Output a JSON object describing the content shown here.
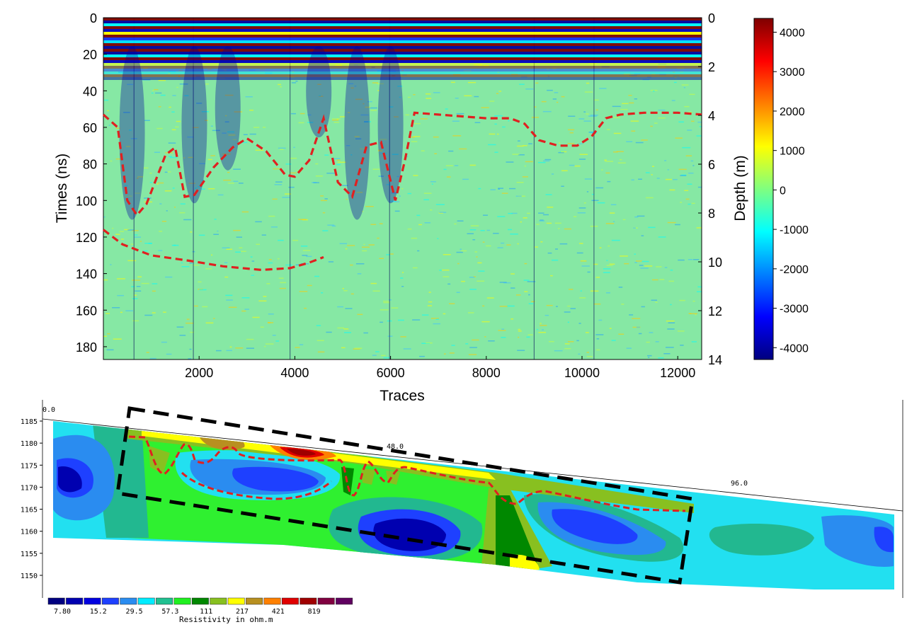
{
  "chart_data": [
    {
      "type": "heatmap",
      "xlabel": "Traces",
      "ylabel_left": "Times (ns)",
      "ylabel_right": "Depth (m)",
      "xticks": [
        2000,
        4000,
        6000,
        8000,
        10000,
        12000
      ],
      "xlim": [
        0,
        12500
      ],
      "yticks_left": [
        0,
        20,
        40,
        60,
        80,
        100,
        120,
        140,
        160,
        180
      ],
      "ylim_left": [
        0,
        187
      ],
      "yticks_right": [
        0,
        2,
        4,
        6,
        8,
        10,
        12,
        14
      ],
      "ylim_right": [
        0,
        14
      ],
      "colorbar_ticks": [
        4000,
        3000,
        2000,
        1000,
        0,
        -1000,
        -2000,
        -3000,
        -4000
      ],
      "colorbar_range": [
        -4300,
        4350
      ],
      "colormap": "jet",
      "interpreted_boundaries": {
        "color": "#e02020",
        "style": "dashed",
        "lines": [
          {
            "x": [
              0,
              300,
              500,
              700,
              900,
              1300,
              1500,
              1700,
              1900,
              2300,
              2700,
              3000,
              3400,
              3800,
              4000,
              4300,
              4600,
              4900,
              5200,
              5500,
              5800,
              6100,
              6300,
              6500,
              7000,
              8000,
              8500,
              8800,
              9100,
              9500,
              9900,
              10200,
              10500,
              10800,
              11300,
              12000,
              12500
            ],
            "y": [
              53,
              60,
              100,
              108,
              102,
              75,
              71,
              98,
              97,
              82,
              71,
              66,
              73,
              86,
              87,
              78,
              55,
              90,
              98,
              70,
              68,
              100,
              78,
              52,
              53,
              55,
              55,
              58,
              67,
              70,
              70,
              65,
              55,
              53,
              52,
              52,
              53
            ]
          },
          {
            "x": [
              0,
              400,
              1000,
              1800,
              2500,
              3300,
              3900,
              4300,
              4600
            ],
            "y": [
              116,
              124,
              130,
              133,
              136,
              138,
              137,
              134,
              131
            ]
          }
        ]
      }
    },
    {
      "type": "heatmap",
      "subtype": "resistivity-section",
      "y_ticks": [
        1185,
        1180,
        1175,
        1170,
        1165,
        1160,
        1155,
        1150
      ],
      "ylim": [
        1147,
        1188
      ],
      "distance_labels": [
        "0.0",
        "48.0",
        "96.0"
      ],
      "distance_range": [
        0,
        120
      ],
      "legend_title": "Resistivity in ohm.m",
      "legend_tick_labels": [
        "7.80",
        "15.2",
        "29.5",
        "57.3",
        "111",
        "217",
        "421",
        "819"
      ],
      "palette": [
        "#000080",
        "#0000b0",
        "#0000e0",
        "#1e40ff",
        "#2a8cf0",
        "#00ecff",
        "#20c090",
        "#20f020",
        "#008800",
        "#88c020",
        "#ffff00",
        "#b89020",
        "#ff8000",
        "#e00000",
        "#a00000",
        "#800040",
        "#600060"
      ],
      "surveyed_window": {
        "color": "#000000",
        "style": "dashed"
      },
      "interpreted_boundary": {
        "color": "#e02020",
        "style": "dashed"
      }
    }
  ]
}
